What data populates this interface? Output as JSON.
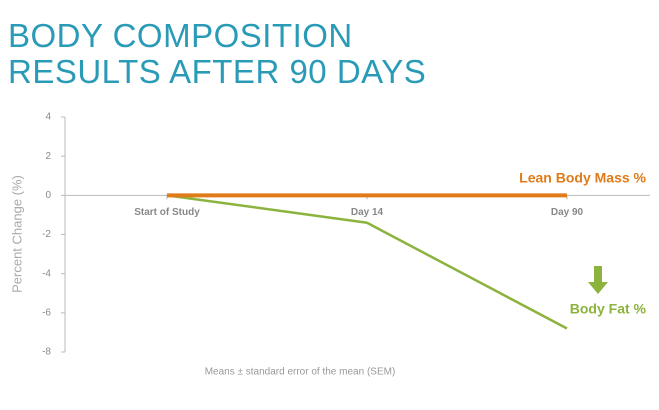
{
  "chart_data": {
    "type": "line",
    "title": "BODY COMPOSITION RESULTS AFTER 90 DAYS",
    "y_label": "Percent Change (%)",
    "footnote": "Means ± standard error of the mean (SEM)",
    "categories": [
      "Start of Study",
      "Day 14",
      "Day 90"
    ],
    "series": [
      {
        "name": "Lean Body Mass %",
        "color": "#e07b1a",
        "values": [
          0,
          0,
          0
        ]
      },
      {
        "name": "Body Fat %",
        "color": "#8cb33e",
        "values": [
          0,
          -1.4,
          -6.8
        ]
      }
    ],
    "ylim": [
      -8,
      4
    ],
    "yticks": [
      -8,
      -6,
      -4,
      -2,
      0,
      2,
      4
    ]
  }
}
